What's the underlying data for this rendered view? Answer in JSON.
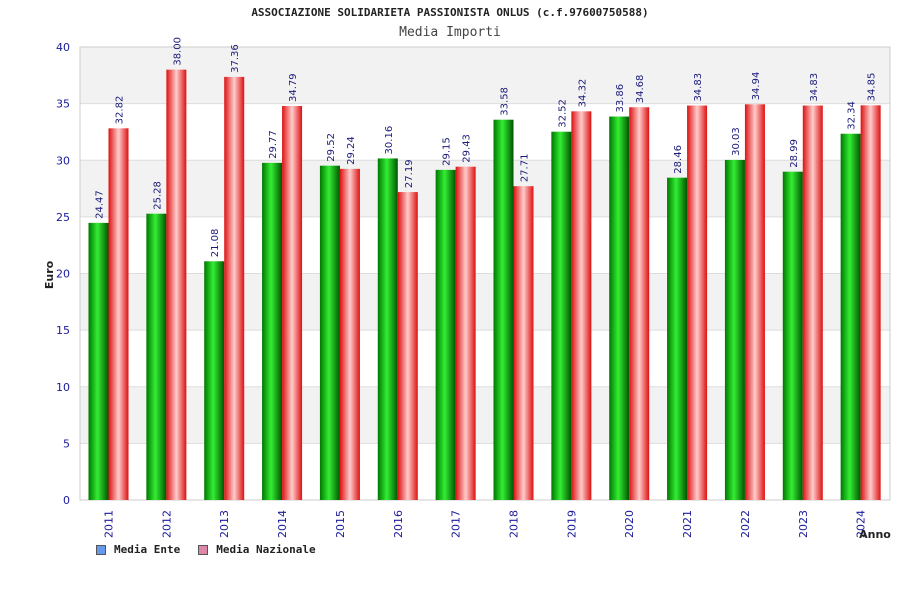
{
  "chart_data": {
    "type": "bar",
    "title": "ASSOCIAZIONE SOLIDARIETA PASSIONISTA ONLUS (c.f.97600750588)",
    "subtitle": "Media Importi",
    "xlabel": "Anno",
    "ylabel": "Euro",
    "ylim": [
      0,
      40
    ],
    "yticks": [
      0,
      5,
      10,
      15,
      20,
      25,
      30,
      35,
      40
    ],
    "categories": [
      "2011",
      "2012",
      "2013",
      "2014",
      "2015",
      "2016",
      "2017",
      "2018",
      "2019",
      "2020",
      "2021",
      "2022",
      "2023",
      "2024"
    ],
    "series": [
      {
        "name": "Media Ente",
        "values": [
          24.47,
          25.28,
          21.08,
          29.77,
          29.52,
          30.16,
          29.15,
          33.58,
          32.52,
          33.86,
          28.46,
          30.03,
          28.99,
          32.34
        ]
      },
      {
        "name": "Media Nazionale",
        "values": [
          32.82,
          38.0,
          37.36,
          34.79,
          29.24,
          27.19,
          29.43,
          27.71,
          34.32,
          34.68,
          34.83,
          34.94,
          34.83,
          34.85
        ]
      }
    ],
    "data_labels": [
      [
        "24.47",
        "25.28",
        "21.08",
        "29.77",
        "29.52",
        "30.16",
        "29.15",
        "33.58",
        "32.52",
        "33.86",
        "28.46",
        "30.03",
        "28.99",
        "32.34"
      ],
      [
        "32.82",
        "38.00",
        "37.36",
        "34.79",
        "29.24",
        "27.19",
        "29.43",
        "27.71",
        "34.32",
        "34.68",
        "34.83",
        "34.94",
        "34.83",
        "34.85"
      ]
    ],
    "legend": {
      "position": "bottom-left",
      "items": [
        {
          "label": "Media Ente",
          "color": "#6699ee"
        },
        {
          "label": "Media Nazionale",
          "color": "#dd88aa"
        }
      ]
    },
    "colors": {
      "ente_dark": "#006600",
      "ente_light": "#22dd22",
      "naz_dark": "#cc1111",
      "naz_light": "#ffbbbb",
      "band": "#f2f2f2",
      "grid": "#dddddd"
    }
  }
}
